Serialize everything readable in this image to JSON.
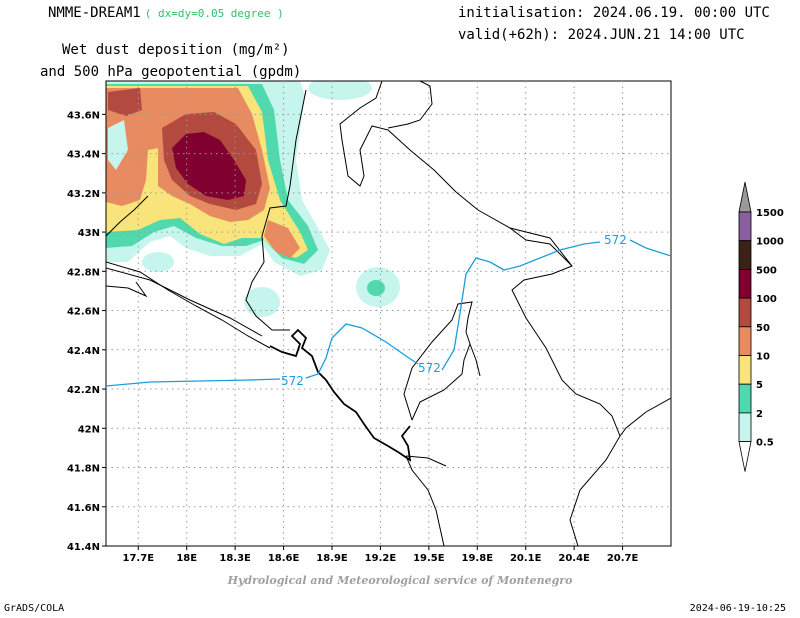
{
  "header": {
    "model_name": "NMME-DREAM1",
    "resolution": "( dx=dy=0.05 degree )",
    "initialisation": "initialisation: 2024.06.19. 00:00 UTC",
    "valid": "valid(+62h): 2024.JUN.21 14:00 UTC",
    "title_line1": "Wet dust deposition (mg/m²)",
    "title_line2": "and 500 hPa geopotential (gpdm)"
  },
  "map": {
    "lon_labels": [
      "17.7E",
      "18E",
      "18.3E",
      "18.6E",
      "18.9E",
      "19.2E",
      "19.5E",
      "19.8E",
      "20.1E",
      "20.4E",
      "20.7E"
    ],
    "lat_labels": [
      "43.6N",
      "43.4N",
      "43.2N",
      "43N",
      "42.8N",
      "42.6N",
      "42.4N",
      "42.2N",
      "42N",
      "41.8N",
      "41.6N",
      "41.4N"
    ],
    "lon_range": [
      17.5,
      21.0
    ],
    "lat_range": [
      41.4,
      43.77
    ],
    "contour_label": "572",
    "contour_color": "#1a9fdc",
    "gridlines": true
  },
  "colorbar": {
    "levels": [
      {
        "label": "1500",
        "color": "#9a9a9a"
      },
      {
        "label": "1000",
        "color": "#8a5fa0"
      },
      {
        "label": "500",
        "color": "#3a2218"
      },
      {
        "label": "100",
        "color": "#800030"
      },
      {
        "label": "50",
        "color": "#b34a40"
      },
      {
        "label": "10",
        "color": "#e88b60"
      },
      {
        "label": "5",
        "color": "#f8e47a"
      },
      {
        "label": "2",
        "color": "#4fd9ac"
      },
      {
        "label": "0.5",
        "color": "#c6f5ee"
      }
    ]
  },
  "footer": {
    "credit": "Hydrological and Meteorological service of Montenegro",
    "software": "GrADS/COLA",
    "timestamp": "2024-06-19-10:25"
  }
}
